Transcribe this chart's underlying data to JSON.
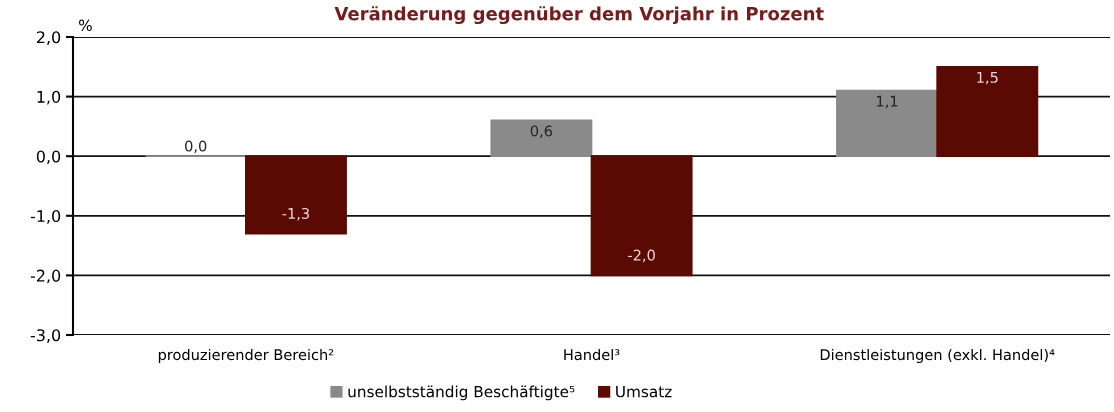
{
  "chart_data": {
    "type": "bar",
    "title": "Veränderung gegenüber dem Vorjahr in Prozent",
    "ylabel": "%",
    "categories": [
      "produzierender Bereich²",
      "Handel³",
      "Dienstleistungen (exkl. Handel)⁴"
    ],
    "series": [
      {
        "name": "unselbstständig Beschäftigte⁵",
        "color": "#8a8a8a",
        "values": [
          0.0,
          0.6,
          1.1
        ],
        "value_labels": [
          "0,0",
          "0,6",
          "1,1"
        ]
      },
      {
        "name": "Umsatz",
        "color": "#5a0a02",
        "values": [
          -1.3,
          -2.0,
          1.5
        ],
        "value_labels": [
          "-1,3",
          "-2,0",
          "1,5"
        ]
      }
    ],
    "ylim": [
      -3,
      2
    ],
    "yticks": [
      {
        "value": -3,
        "label": "-3,0"
      },
      {
        "value": -2,
        "label": "-2,0"
      },
      {
        "value": -1,
        "label": "-1,0"
      },
      {
        "value": 0,
        "label": "0,0"
      },
      {
        "value": 1,
        "label": "1,0"
      },
      {
        "value": 2,
        "label": "2,0"
      }
    ],
    "grid": "y",
    "legend": "bottom"
  }
}
